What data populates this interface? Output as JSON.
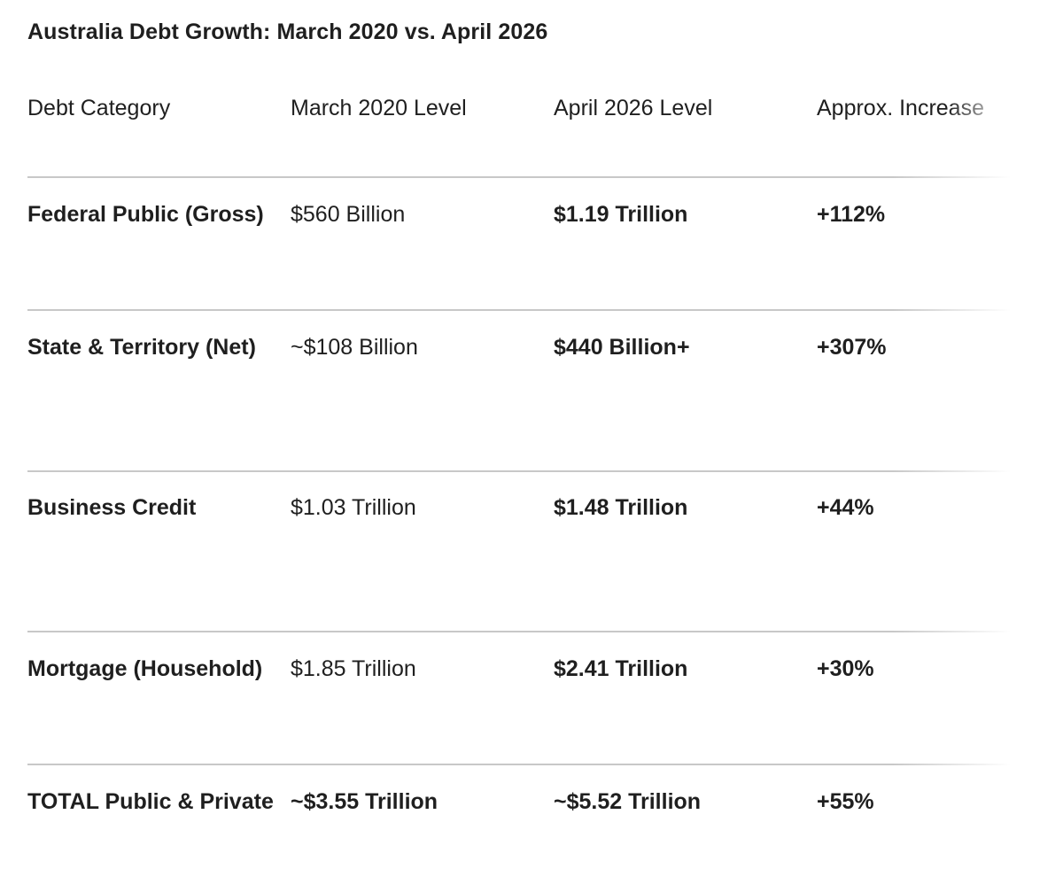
{
  "title": "Australia Debt Growth: March 2020 vs. April 2026",
  "table": {
    "headers": [
      "Debt Category",
      "March 2020 Level",
      "April 2026 Level",
      "Approx. Increase"
    ],
    "rows": [
      {
        "category": "Federal Public (Gross)",
        "march_2020": "$560 Billion",
        "april_2026": "$1.19 Trillion",
        "increase": "+112%"
      },
      {
        "category": "State & Territory (Net)",
        "march_2020": "~$108 Billion",
        "april_2026": "$440 Billion+",
        "increase": "+307%"
      },
      {
        "category": "Business Credit",
        "march_2020": "$1.03 Trillion",
        "april_2026": "$1.48 Trillion",
        "increase": "+44%"
      },
      {
        "category": "Mortgage (Household)",
        "march_2020": "$1.85 Trillion",
        "april_2026": "$2.41 Trillion",
        "increase": "+30%"
      },
      {
        "category": "TOTAL Public & Private",
        "march_2020": "~$3.55 Trillion",
        "april_2026": "~$5.52 Trillion",
        "increase": "+55%"
      }
    ]
  }
}
